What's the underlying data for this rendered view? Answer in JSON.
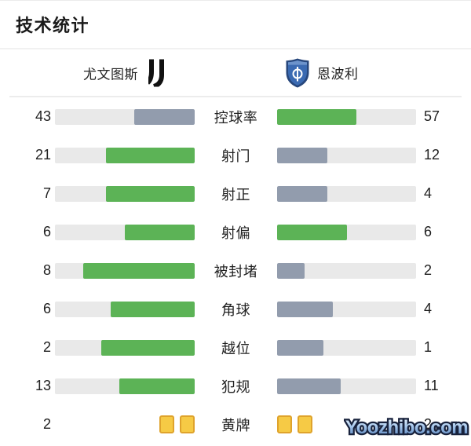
{
  "title": "技术统计",
  "teams": {
    "home": {
      "name": "尤文图斯",
      "logo": "juventus-logo"
    },
    "away": {
      "name": "恩波利",
      "logo": "empoli-logo"
    }
  },
  "colors": {
    "win_fill": "#5cb356",
    "lose_fill": "#929cad",
    "track": "#e9e9e9",
    "card_fill": "#f6ca45",
    "card_border": "#dfa32c"
  },
  "stats": [
    {
      "label": "控球率",
      "home": {
        "value": 43,
        "fill": "lose"
      },
      "away": {
        "value": 57,
        "fill": "win"
      }
    },
    {
      "label": "射门",
      "home": {
        "value": 21,
        "fill": "win"
      },
      "away": {
        "value": 12,
        "fill": "lose"
      }
    },
    {
      "label": "射正",
      "home": {
        "value": 7,
        "fill": "win"
      },
      "away": {
        "value": 4,
        "fill": "lose"
      }
    },
    {
      "label": "射偏",
      "home": {
        "value": 6,
        "fill": "win"
      },
      "away": {
        "value": 6,
        "fill": "win"
      }
    },
    {
      "label": "被封堵",
      "home": {
        "value": 8,
        "fill": "win"
      },
      "away": {
        "value": 2,
        "fill": "lose"
      }
    },
    {
      "label": "角球",
      "home": {
        "value": 6,
        "fill": "win"
      },
      "away": {
        "value": 4,
        "fill": "lose"
      }
    },
    {
      "label": "越位",
      "home": {
        "value": 2,
        "fill": "win"
      },
      "away": {
        "value": 1,
        "fill": "lose"
      }
    },
    {
      "label": "犯规",
      "home": {
        "value": 13,
        "fill": "win"
      },
      "away": {
        "value": 11,
        "fill": "lose"
      }
    },
    {
      "label": "黄牌",
      "type": "cards",
      "home": {
        "value": 2
      },
      "away": {
        "value": 2
      }
    }
  ],
  "watermark": "Yoozhibo.com"
}
